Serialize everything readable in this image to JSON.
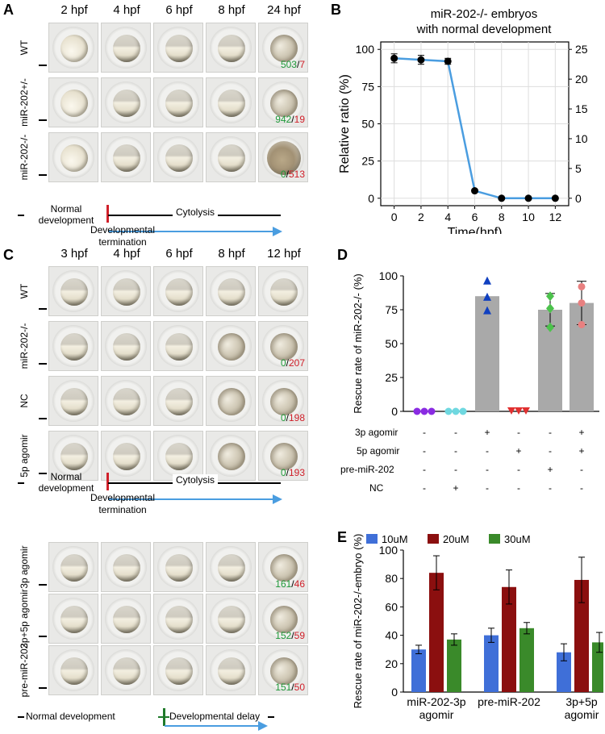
{
  "panel_a": {
    "letter": "A",
    "headers": [
      "2 hpf",
      "4 hpf",
      "6 hpf",
      "8 hpf",
      "24 hpf"
    ],
    "rows": [
      {
        "label": "WT",
        "green": "503",
        "red": "7"
      },
      {
        "label": "miR-202+/-",
        "green": "942",
        "red": "19"
      },
      {
        "label": "miR-202-/-",
        "green": "0",
        "red": "513"
      }
    ],
    "timeline": {
      "normal": "Normal development",
      "termination": "Developmental termination",
      "cytolysis": "Cytolysis"
    }
  },
  "panel_b": {
    "letter": "B",
    "title_line1": "miR-202-/- embryos",
    "title_line2": "with normal development"
  },
  "panel_c": {
    "letter": "C",
    "headers": [
      "3 hpf",
      "4 hpf",
      "6 hpf",
      "8 hpf",
      "12 hpf"
    ],
    "rows_top": [
      {
        "label": "WT",
        "green": "",
        "red": ""
      },
      {
        "label": "miR-202-/-",
        "green": "0",
        "red": "207"
      },
      {
        "label": "NC",
        "green": "0",
        "red": "198"
      },
      {
        "label": "5p agomir",
        "green": "0",
        "red": "193"
      }
    ],
    "timeline_top": {
      "normal": "Normal development",
      "termination": "Developmental termination",
      "cytolysis": "Cytolysis"
    },
    "rows_bottom": [
      {
        "label": "3p agomir",
        "green": "161",
        "red": "46"
      },
      {
        "label": "3p+5p agomir",
        "green": "152",
        "red": "59"
      },
      {
        "label": "pre-miR-202",
        "green": "151",
        "red": "50"
      }
    ],
    "timeline_bottom": {
      "normal": "Normal development",
      "delay": "Developmental delay"
    }
  },
  "panel_d": {
    "letter": "D",
    "row_labels": [
      "3p agomir",
      "5p agomir",
      "pre-miR-202",
      "NC"
    ],
    "signs": [
      [
        "-",
        "-",
        "+",
        "-",
        "-",
        "+"
      ],
      [
        "-",
        "-",
        "-",
        "+",
        "-",
        "+"
      ],
      [
        "-",
        "-",
        "-",
        "-",
        "+",
        "-"
      ],
      [
        "-",
        "+",
        "-",
        "-",
        "-",
        "-"
      ]
    ]
  },
  "panel_e": {
    "letter": "E"
  },
  "chart_data": [
    {
      "type": "line",
      "title": "miR-202-/- embryos with normal development",
      "xlabel": "Time(hpf)",
      "ylabel": "Relative ratio (%)",
      "x": [
        0,
        2,
        4,
        6,
        8,
        10,
        12
      ],
      "y": [
        94,
        93,
        92,
        5,
        0,
        0,
        0
      ],
      "err": [
        3,
        3,
        2,
        1,
        0,
        0,
        0
      ],
      "xlim": [
        -1,
        13
      ],
      "ylim": [
        -5,
        105
      ],
      "yticks": [
        0,
        25,
        50,
        75,
        100
      ],
      "y2ticks": [
        0,
        5,
        10,
        15,
        20,
        25
      ],
      "color": "#4a9de0"
    },
    {
      "type": "bar",
      "ylabel": "Rescue rate of miR-202-/- (%)",
      "values": [
        0,
        0,
        85,
        0,
        75,
        80
      ],
      "err": [
        0,
        0,
        0,
        0,
        12,
        16
      ],
      "ylim": [
        0,
        100
      ],
      "yticks": [
        0,
        25,
        50,
        75,
        100
      ],
      "points": [
        {
          "marker": "circle",
          "color": "#8a2be2",
          "values": [
            0,
            0,
            0
          ]
        },
        {
          "marker": "circle",
          "color": "#6fd8e0",
          "values": [
            0,
            0,
            0
          ]
        },
        {
          "marker": "triangle-up",
          "color": "#1040c0",
          "values": [
            96,
            84,
            74
          ]
        },
        {
          "marker": "triangle-down",
          "color": "#e03030",
          "values": [
            0,
            0,
            0
          ]
        },
        {
          "marker": "diamond",
          "color": "#4cc24c",
          "values": [
            85,
            76,
            62
          ]
        },
        {
          "marker": "circle",
          "color": "#e88080",
          "values": [
            92,
            80,
            64
          ]
        }
      ],
      "bar_color": "#a9a9a9"
    },
    {
      "type": "bar",
      "ylabel": "Rescue rate of miR-202-/-embryo (%)",
      "categories": [
        "miR-202-3p agomir",
        "pre-miR-202",
        "3p+5p agomir"
      ],
      "series": [
        {
          "name": "10uM",
          "color": "#3f6fd8",
          "values": [
            30,
            40,
            28
          ],
          "err": [
            3,
            5,
            6
          ]
        },
        {
          "name": "20uM",
          "color": "#8b0f0f",
          "values": [
            84,
            74,
            79
          ],
          "err": [
            12,
            12,
            16
          ]
        },
        {
          "name": "30uM",
          "color": "#3a8a2a",
          "values": [
            37,
            45,
            35
          ],
          "err": [
            4,
            4,
            7
          ]
        }
      ],
      "ylim": [
        0,
        100
      ],
      "yticks": [
        0,
        20,
        40,
        60,
        80,
        100
      ]
    }
  ]
}
